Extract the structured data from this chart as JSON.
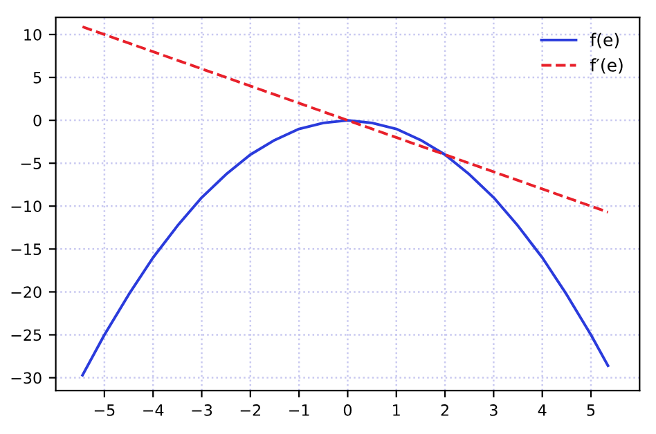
{
  "chart_data": {
    "type": "line",
    "xlim": [
      -6.0,
      6.0
    ],
    "ylim": [
      -31.5,
      12
    ],
    "xticks": [
      {
        "value": -5,
        "label": "−5"
      },
      {
        "value": -4,
        "label": "−4"
      },
      {
        "value": -3,
        "label": "−3"
      },
      {
        "value": -2,
        "label": "−2"
      },
      {
        "value": -1,
        "label": "−1"
      },
      0,
      1,
      2,
      3,
      4,
      5
    ],
    "yticks": [
      {
        "value": -30,
        "label": "−30"
      },
      {
        "value": -25,
        "label": "−25"
      },
      {
        "value": -20,
        "label": "−20"
      },
      {
        "value": -15,
        "label": "−15"
      },
      {
        "value": -10,
        "label": "−10"
      },
      {
        "value": -5,
        "label": "−5"
      },
      0,
      5,
      10
    ],
    "grid": true,
    "legend": "top right",
    "series": [
      {
        "name": "f(e)",
        "color": "#2a3bdc",
        "line_style": "solid",
        "x": [
          -5.45,
          -5,
          -4.5,
          -4,
          -3.5,
          -3,
          -2.5,
          -2,
          -1.5,
          -1,
          -0.5,
          0,
          0.5,
          1,
          1.5,
          2,
          2.5,
          3,
          3.5,
          4,
          4.5,
          5,
          5.35
        ],
        "values": [
          -29.7,
          -25,
          -20.3,
          -16,
          -12.3,
          -9,
          -6.3,
          -4,
          -2.3,
          -1,
          -0.3,
          0,
          -0.3,
          -1,
          -2.3,
          -4,
          -6.3,
          -9,
          -12.3,
          -16,
          -20.3,
          -25,
          -28.6
        ]
      },
      {
        "name": "f′(e)",
        "color": "#e8202a",
        "line_style": "dashed",
        "x": [
          -5.45,
          5.35
        ],
        "values": [
          10.9,
          -10.7
        ]
      }
    ]
  }
}
